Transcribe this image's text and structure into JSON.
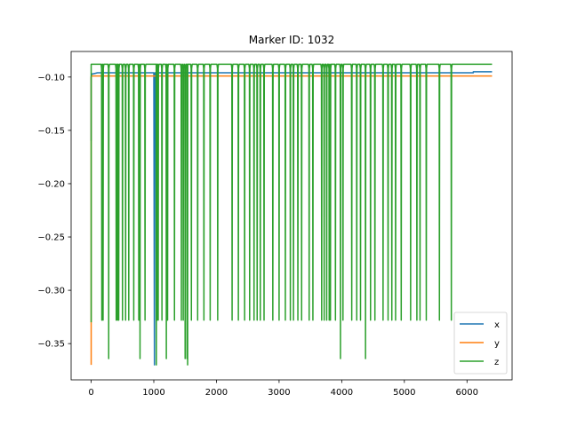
{
  "chart_data": {
    "type": "line",
    "title": "Marker ID: 1032",
    "xlabel": "",
    "ylabel": "",
    "xlim": [
      -320,
      6720
    ],
    "ylim": [
      -0.384,
      -0.076
    ],
    "xticks": [
      0,
      1000,
      2000,
      3000,
      4000,
      5000,
      6000
    ],
    "yticks": [
      -0.1,
      -0.15,
      -0.2,
      -0.25,
      -0.3,
      -0.35
    ],
    "xtick_labels": [
      "0",
      "1000",
      "2000",
      "3000",
      "4000",
      "5000",
      "6000"
    ],
    "ytick_labels": [
      "−0.10",
      "−0.15",
      "−0.20",
      "−0.25",
      "−0.30",
      "−0.35"
    ],
    "grid": false,
    "legend_position": "lower-right",
    "series": [
      {
        "name": "x",
        "color": "#1f77b4",
        "baseline": -0.096,
        "x_end": 6400,
        "x": [
          0,
          0,
          10,
          30,
          100,
          300,
          1000,
          1010,
          1020,
          1100,
          2000,
          3000,
          4000,
          5000,
          5800,
          6100,
          6100,
          6400
        ],
        "y": [
          -0.16,
          -0.1,
          -0.097,
          -0.097,
          -0.096,
          -0.096,
          -0.096,
          -0.37,
          -0.096,
          -0.096,
          -0.096,
          -0.096,
          -0.096,
          -0.096,
          -0.096,
          -0.096,
          -0.095,
          -0.095
        ]
      },
      {
        "name": "y",
        "color": "#ff7f0e",
        "baseline": -0.099,
        "x_end": 6400,
        "x": [
          0,
          0,
          5,
          20,
          100,
          1000,
          2000,
          3000,
          4000,
          5000,
          6000,
          6400
        ],
        "y": [
          -0.37,
          -0.1,
          -0.099,
          -0.099,
          -0.099,
          -0.099,
          -0.099,
          -0.099,
          -0.099,
          -0.099,
          -0.099,
          -0.099
        ]
      },
      {
        "name": "z",
        "color": "#2ca02c",
        "baseline": -0.088,
        "x_end": 6400,
        "low_level": -0.328,
        "deep_level": -0.364,
        "drops_x": [
          0,
          170,
          190,
          280,
          400,
          420,
          440,
          500,
          550,
          600,
          680,
          760,
          780,
          860,
          1050,
          1070,
          1130,
          1200,
          1220,
          1330,
          1440,
          1470,
          1500,
          1530,
          1600,
          1700,
          1800,
          1900,
          2020,
          2250,
          2350,
          2450,
          2530,
          2600,
          2650,
          2700,
          2760,
          2900,
          3000,
          3100,
          3180,
          3230,
          3300,
          3360,
          3480,
          3540,
          3680,
          3720,
          3760,
          3800,
          3820,
          3900,
          3980,
          4020,
          4160,
          4240,
          4300,
          4380,
          4460,
          4530,
          4660,
          4740,
          4800,
          4860,
          4950,
          5100,
          5200,
          5250,
          5350,
          5560,
          5750
        ],
        "deep_drops_x": [
          280,
          540,
          650,
          780,
          1200,
          1500,
          1530,
          2030,
          2780,
          3980,
          4040,
          4270,
          4380,
          4580,
          4820
        ],
        "dip_x": [
          1040,
          1540
        ],
        "dip_y": -0.37
      }
    ]
  }
}
